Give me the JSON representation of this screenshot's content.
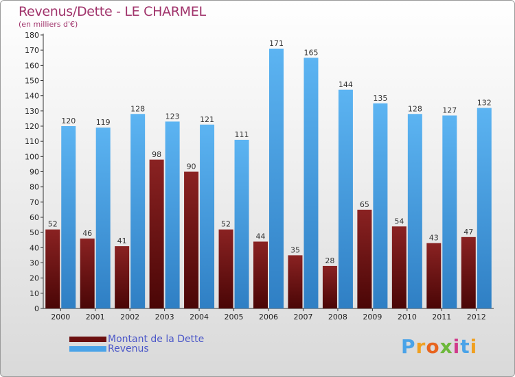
{
  "header": {
    "title": "Revenus/Dette - LE CHARMEL",
    "subtitle": "(en milliers d'€)"
  },
  "colors": {
    "dette": "#7a1515",
    "revenus": "#4aa3e8",
    "title": "#a0336b",
    "legend_text": "#4a56c8"
  },
  "legend": [
    {
      "label": "Montant de la Dette",
      "color": "#6b0f0f"
    },
    {
      "label": "Revenus",
      "color": "#4aa3e8"
    }
  ],
  "logo": {
    "text": "Proxiti",
    "letter_colors": [
      "#4aa3e8",
      "#f0a020",
      "#e8641e",
      "#6cb83a",
      "#d03a8a",
      "#4aa3e8",
      "#f0a020"
    ]
  },
  "chart_data": {
    "type": "bar",
    "title": "Revenus/Dette - LE CHARMEL",
    "subtitle": "(en milliers d'€)",
    "categories": [
      "2000",
      "2001",
      "2002",
      "2003",
      "2004",
      "2005",
      "2006",
      "2007",
      "2008",
      "2009",
      "2010",
      "2011",
      "2012"
    ],
    "series": [
      {
        "name": "Montant de la Dette",
        "values": [
          52,
          46,
          41,
          98,
          90,
          52,
          44,
          35,
          28,
          65,
          54,
          43,
          47
        ]
      },
      {
        "name": "Revenus",
        "values": [
          120,
          119,
          128,
          123,
          121,
          111,
          171,
          165,
          144,
          135,
          128,
          127,
          132
        ]
      }
    ],
    "ylim": [
      0,
      180
    ],
    "yticks": [
      0,
      10,
      20,
      30,
      40,
      50,
      60,
      70,
      80,
      90,
      100,
      110,
      120,
      130,
      140,
      150,
      160,
      170,
      180
    ],
    "grid": false,
    "legend_position": "bottom-left"
  }
}
